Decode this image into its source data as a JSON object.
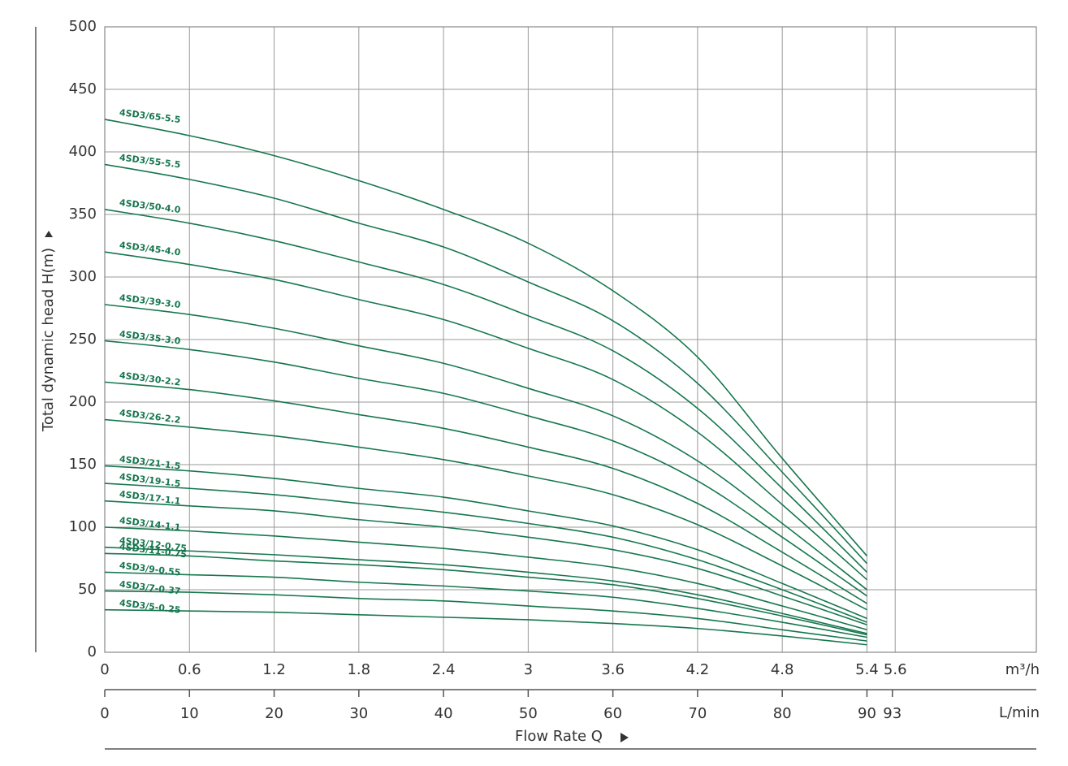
{
  "chart_data": {
    "type": "line",
    "ylabel": "Total dynamic head H(m)",
    "xlabel": "Flow Rate Q",
    "xunit": "m³/h",
    "x2unit": "L/min",
    "x": [
      0,
      0.6,
      1.2,
      1.8,
      2.4,
      3.0,
      3.6,
      4.2,
      4.8,
      5.4
    ],
    "xlim": [
      0,
      6.6
    ],
    "xticks": [
      0,
      0.6,
      1.2,
      1.8,
      2.4,
      3,
      3.6,
      4.2,
      4.8,
      5.4,
      5.6
    ],
    "x2lim": [
      0,
      110
    ],
    "x2ticks": [
      0,
      10,
      20,
      30,
      40,
      50,
      60,
      70,
      80,
      90,
      93
    ],
    "ylim": [
      0,
      500
    ],
    "yticks": [
      0,
      50,
      100,
      150,
      200,
      250,
      300,
      350,
      400,
      450,
      500
    ],
    "grid": true,
    "color": "#17774f",
    "series": [
      {
        "name": "4SD3/65-5.5",
        "values": [
          426,
          413,
          397,
          377,
          354,
          327,
          289,
          236,
          155,
          77
        ]
      },
      {
        "name": "4SD3/55-5.5",
        "values": [
          390,
          378,
          363,
          343,
          324,
          296,
          265,
          215,
          144,
          71
        ]
      },
      {
        "name": "4SD3/50-4.0",
        "values": [
          354,
          343,
          329,
          312,
          294,
          269,
          241,
          195,
          131,
          64
        ]
      },
      {
        "name": "4SD3/45-4.0",
        "values": [
          320,
          310,
          298,
          282,
          266,
          243,
          218,
          176,
          118,
          58
        ]
      },
      {
        "name": "4SD3/39-3.0",
        "values": [
          278,
          270,
          259,
          245,
          231,
          211,
          189,
          153,
          103,
          50
        ]
      },
      {
        "name": "4SD3/35-3.0",
        "values": [
          249,
          242,
          232,
          219,
          207,
          189,
          169,
          137,
          92,
          45
        ]
      },
      {
        "name": "4SD3/30-2.2",
        "values": [
          216,
          210,
          201,
          190,
          179,
          164,
          147,
          119,
          80,
          39
        ]
      },
      {
        "name": "4SD3/26-2.2",
        "values": [
          186,
          180,
          173,
          164,
          154,
          141,
          126,
          102,
          69,
          34
        ]
      },
      {
        "name": "4SD3/21-1.5",
        "values": [
          149,
          145,
          139,
          131,
          124,
          113,
          101,
          82,
          55,
          27
        ]
      },
      {
        "name": "4SD3/19-1.5",
        "values": [
          135,
          131,
          126,
          119,
          112,
          103,
          92,
          74,
          50,
          24
        ]
      },
      {
        "name": "4SD3/17-1.1",
        "values": [
          121,
          117,
          113,
          106,
          100,
          92,
          82,
          67,
          45,
          22
        ]
      },
      {
        "name": "4SD3/14-1.1",
        "values": [
          100,
          97,
          93,
          88,
          83,
          76,
          68,
          55,
          37,
          18
        ]
      },
      {
        "name": "4SD3/12-0.75",
        "values": [
          84,
          81,
          78,
          74,
          70,
          64,
          57,
          46,
          31,
          15
        ]
      },
      {
        "name": "4SD3/11-0.75",
        "values": [
          79,
          77,
          73,
          70,
          66,
          60,
          54,
          43,
          29,
          14
        ]
      },
      {
        "name": "4SD3/9-0.55",
        "values": [
          64,
          62,
          60,
          56,
          53,
          49,
          44,
          35,
          24,
          12
        ]
      },
      {
        "name": "4SD3/7-0.37",
        "values": [
          49,
          48,
          46,
          43,
          41,
          37,
          33,
          27,
          18,
          9
        ]
      },
      {
        "name": "4SD3/5-0.25",
        "values": [
          34,
          33,
          32,
          30,
          28,
          26,
          23,
          19,
          13,
          6
        ]
      }
    ]
  }
}
